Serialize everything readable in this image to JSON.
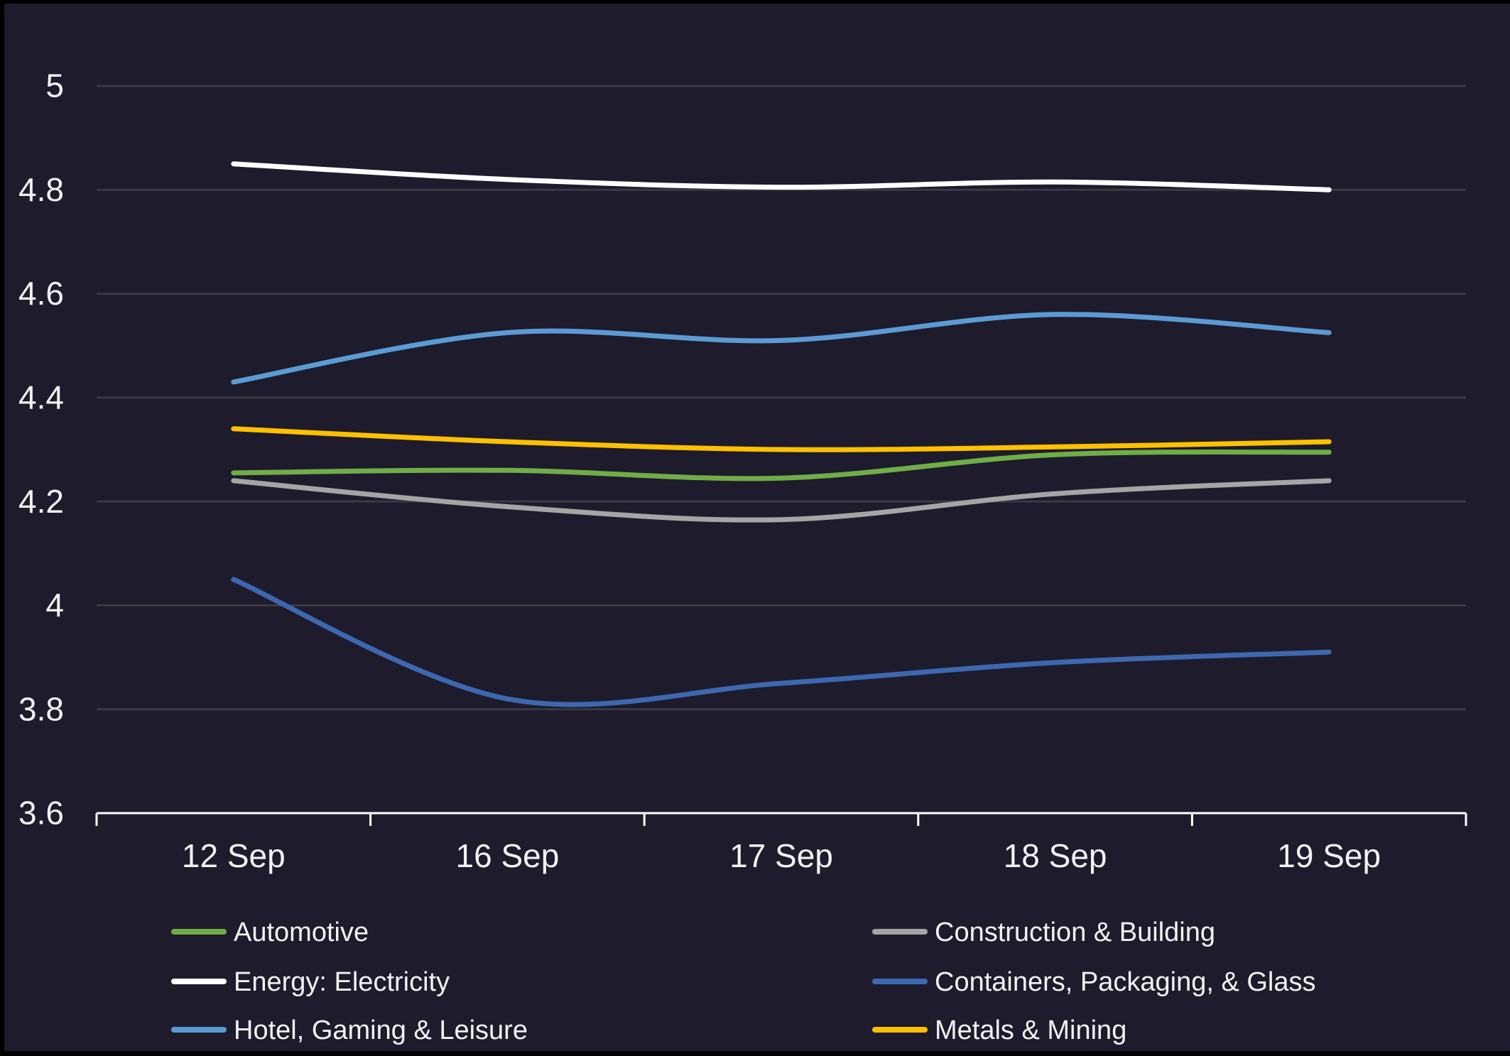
{
  "chart_data": {
    "type": "line",
    "title": "",
    "categories": [
      "12 Sep",
      "16 Sep",
      "17 Sep",
      "18 Sep",
      "19 Sep"
    ],
    "series": [
      {
        "name": "Automotive",
        "color": "#70AD47",
        "values": [
          4.255,
          4.26,
          4.245,
          4.29,
          4.295
        ]
      },
      {
        "name": "Construction & Building",
        "color": "#A5A5A5",
        "values": [
          4.24,
          4.19,
          4.165,
          4.215,
          4.24
        ]
      },
      {
        "name": "Energy: Electricity",
        "color": "#FFFFFF",
        "values": [
          4.85,
          4.82,
          4.805,
          4.815,
          4.8
        ]
      },
      {
        "name": "Containers, Packaging, & Glass",
        "color": "#3D68B1",
        "values": [
          4.05,
          3.82,
          3.85,
          3.89,
          3.91
        ]
      },
      {
        "name": "Hotel, Gaming & Leisure",
        "color": "#5B9BD5",
        "values": [
          4.43,
          4.525,
          4.51,
          4.56,
          4.525
        ]
      },
      {
        "name": "Metals & Mining",
        "color": "#FFC000",
        "values": [
          4.34,
          4.315,
          4.3,
          4.305,
          4.315
        ]
      }
    ],
    "y_axis": {
      "min": 3.6,
      "max": 5,
      "tick_values": [
        5,
        4.8,
        4.6,
        4.4,
        4.2,
        4,
        3.8,
        3.6
      ],
      "tick_labels": [
        "5",
        "4.8",
        "4.6",
        "4.4",
        "4.2",
        "4",
        "3.8",
        "3.6"
      ]
    },
    "x_axis": {
      "labels": [
        "12 Sep",
        "16 Sep",
        "17 Sep",
        "18 Sep",
        "19 Sep"
      ]
    },
    "legend": {
      "position": "bottom",
      "columns": [
        [
          "Automotive",
          "Energy: Electricity",
          "Hotel, Gaming & Leisure"
        ],
        [
          "Construction & Building",
          "Containers, Packaging, & Glass",
          "Metals & Mining"
        ]
      ]
    },
    "grid": true,
    "smooth": true
  },
  "colors": {
    "background": "#1E1B2C",
    "gridline": "#3B3A43",
    "axis_line": "#FFFFFF",
    "text": "#F2F2F2"
  }
}
